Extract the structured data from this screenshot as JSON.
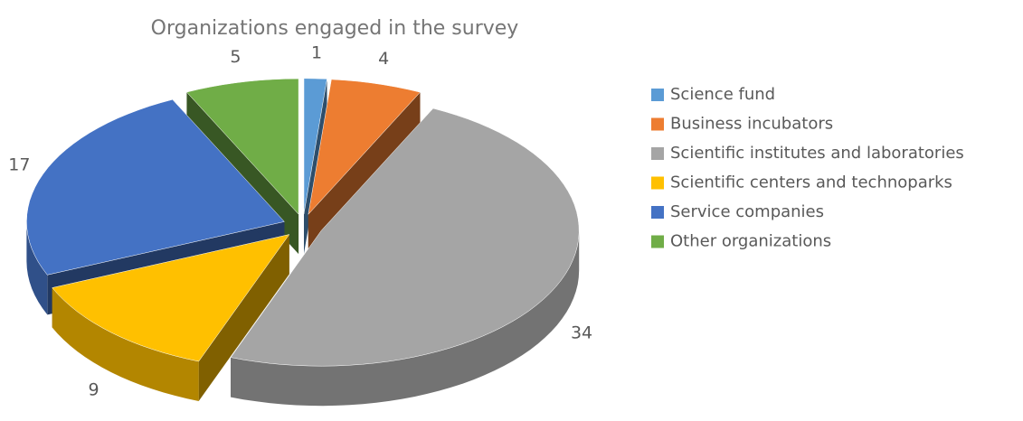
{
  "chart_data": {
    "type": "pie3d",
    "title": "Organizations engaged in the survey",
    "categories": [
      "Science fund",
      "Business incubators",
      "Scientific institutes and laboratories",
      "Scientific centers and technoparks",
      "Service companies",
      "Other organizations"
    ],
    "values": [
      1,
      4,
      34,
      9,
      17,
      5
    ],
    "colors": [
      "#5b9bd5",
      "#ed7d31",
      "#a5a5a5",
      "#ffc000",
      "#4472c4",
      "#70ad47"
    ],
    "legend": "right"
  }
}
